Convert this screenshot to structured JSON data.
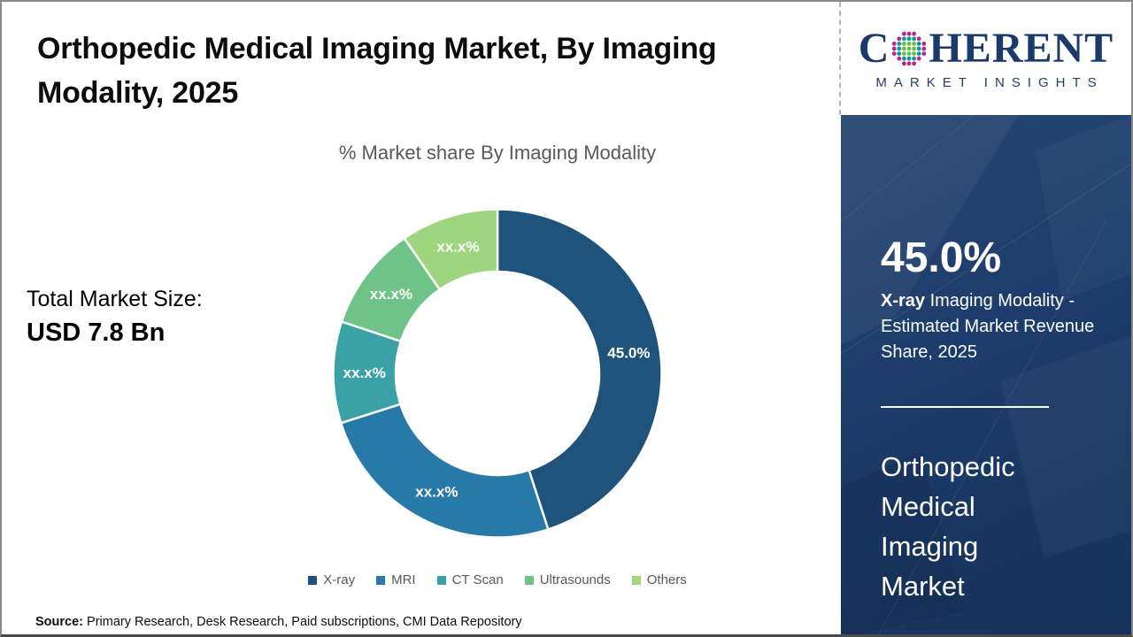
{
  "header": {
    "title": "Orthopedic Medical Imaging Market, By Imaging Modality, 2025"
  },
  "logo": {
    "word_start": "C",
    "word_end": "HERENT",
    "tagline": "MARKET INSIGHTS",
    "brand_color": "#1b3a6b",
    "globe_colors": {
      "inner": "#67bf45",
      "middle": "#0e93a0",
      "outer": "#b3268f"
    }
  },
  "left_panel": {
    "total_label": "Total Market Size:",
    "total_value": "USD 7.8 Bn"
  },
  "chart": {
    "subtitle": "% Market share By Imaging Modality"
  },
  "chart_data": {
    "type": "pie",
    "donut": true,
    "donut_hole_ratio": 0.62,
    "start_angle_deg": 0,
    "direction": "clockwise",
    "title": "% Market share By Imaging Modality",
    "categories": [
      "X-ray",
      "MRI",
      "CT Scan",
      "Ultrasounds",
      "Others"
    ],
    "values": [
      45.0,
      25.1,
      10.0,
      10.3,
      9.6
    ],
    "labels": [
      "45.0%",
      "xx.x%",
      "xx.x%",
      "xx.x%",
      "xx.x%"
    ],
    "colors": [
      "#1f537c",
      "#2779a8",
      "#3aa1a6",
      "#6fc389",
      "#9ed67f"
    ],
    "label_color": "#ffffff",
    "legend_position": "bottom"
  },
  "sidebar": {
    "stat_value": "45.0%",
    "stat_bold": "X-ray",
    "stat_desc": " Imaging Modality - Estimated Market Revenue Share, 2025",
    "market_name": "Orthopedic Medical Imaging Market",
    "background_color": "#1d3c6b"
  },
  "footer": {
    "source_label": "Source:",
    "source_text": " Primary Research, Desk Research, Paid subscriptions, CMI Data Repository"
  }
}
